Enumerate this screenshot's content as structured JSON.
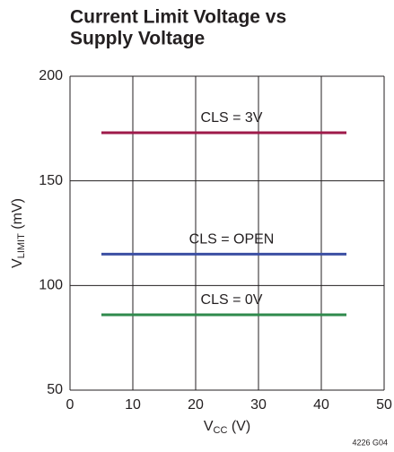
{
  "chart_data": {
    "type": "line",
    "title": [
      "Current Limit Voltage vs",
      "Supply Voltage"
    ],
    "xlabel": [
      "V",
      "CC",
      " (V)"
    ],
    "ylabel": [
      "V",
      "LIMIT",
      " (mV)"
    ],
    "footnote": "4226 G04",
    "x": [
      5,
      10,
      15,
      20,
      25,
      30,
      35,
      40,
      44
    ],
    "series": [
      {
        "name": "CLS = 3V",
        "color": "#9e1a4a",
        "values": [
          173,
          173,
          173,
          173,
          173,
          173,
          173,
          173,
          173
        ]
      },
      {
        "name": "CLS = OPEN",
        "color": "#3b4fa3",
        "values": [
          115,
          115,
          115,
          115,
          115,
          115,
          115,
          115,
          115
        ]
      },
      {
        "name": "CLS = 0V",
        "color": "#2f8a4c",
        "values": [
          86,
          86,
          86,
          86,
          86,
          86,
          86,
          86,
          86
        ]
      }
    ],
    "xlim": [
      0,
      50
    ],
    "xticks": [
      0,
      10,
      20,
      30,
      40,
      50
    ],
    "ylim": [
      50,
      200
    ],
    "yticks": [
      50,
      100,
      150,
      200
    ],
    "grid": true
  }
}
